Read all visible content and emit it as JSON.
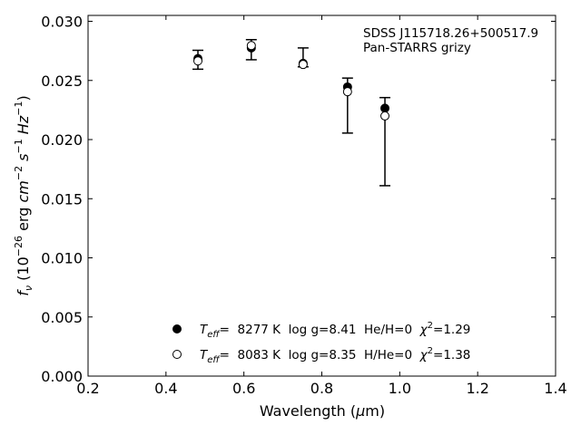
{
  "chart_data": {
    "type": "scatter",
    "xlabel_main": "Wavelength (",
    "xlabel_mu": "μ",
    "xlabel_unit": "m)",
    "ylabel": {
      "f": "f",
      "nu": "ν",
      "open": " (10",
      "exp1": "−26",
      "erg": " erg ",
      "cm": "cm",
      "exp2": "−2",
      "s": " s",
      "exp3": "−1",
      "hz": " Hz",
      "exp4": "−1",
      "close": ")"
    },
    "xlim": [
      0.2,
      1.4
    ],
    "ylim": [
      0.0,
      0.0305
    ],
    "xticks": [
      0.2,
      0.4,
      0.6,
      0.8,
      1.0,
      1.2,
      1.4
    ],
    "xtick_labels": [
      "0.2",
      "0.4",
      "0.6",
      "0.8",
      "1.0",
      "1.2",
      "1.4"
    ],
    "yticks": [
      0.0,
      0.005,
      0.01,
      0.015,
      0.02,
      0.025,
      0.03
    ],
    "ytick_labels": [
      "0.000",
      "0.005",
      "0.010",
      "0.015",
      "0.020",
      "0.025",
      "0.030"
    ],
    "annotations": [
      "SDSS J115718.26+500517.9",
      "Pan-STARRS grizy"
    ],
    "grid": false,
    "legend_position": "bottom-center",
    "observed": {
      "x": [
        0.482,
        0.619,
        0.752,
        0.866,
        0.962
      ],
      "y_low": [
        0.02595,
        0.02675,
        0.02615,
        0.02055,
        0.0161
      ],
      "y_high": [
        0.02755,
        0.02845,
        0.02775,
        0.0252,
        0.02355
      ]
    },
    "series": [
      {
        "marker": "filled-circle",
        "teff_label": "T",
        "teff_sub": "eff",
        "teff_value": "=  8277 K  log g=8.41  He/H=0  ",
        "chi_sym": "χ",
        "chi_exp": "2",
        "chi_value": "=1.29",
        "x": [
          0.482,
          0.619,
          0.752,
          0.866,
          0.962
        ],
        "y": [
          0.02685,
          0.02775,
          0.02645,
          0.02445,
          0.02265
        ]
      },
      {
        "marker": "open-circle",
        "teff_label": "T",
        "teff_sub": "eff",
        "teff_value": "=  8083 K  log g=8.35  H/He=0  ",
        "chi_sym": "χ",
        "chi_exp": "2",
        "chi_value": "=1.38",
        "x": [
          0.482,
          0.619,
          0.752,
          0.866,
          0.962
        ],
        "y": [
          0.02665,
          0.02795,
          0.02635,
          0.02405,
          0.022
        ]
      }
    ]
  },
  "colors": {
    "axis": "#000000",
    "marker": "#000000",
    "background": "#ffffff"
  }
}
